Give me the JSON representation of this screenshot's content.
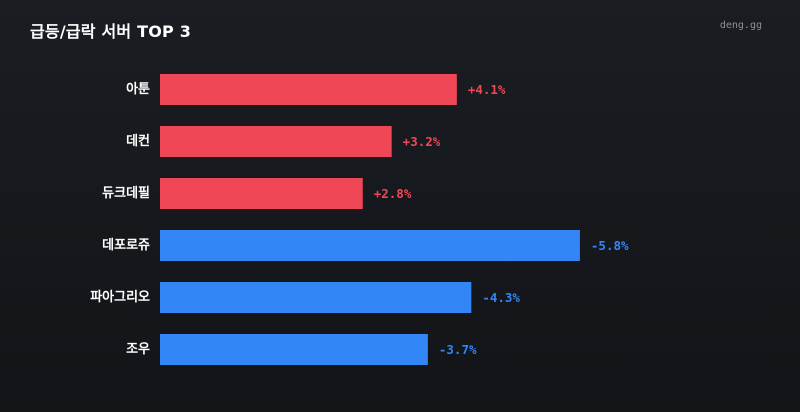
{
  "header": {
    "title": "급등/급락 서버 TOP 3",
    "brand": "deng.gg"
  },
  "colors": {
    "positive": "#f04757",
    "negative": "#3286f5"
  },
  "chart_data": {
    "type": "bar",
    "orientation": "horizontal",
    "categories": [
      "아툰",
      "데컨",
      "듀크데필",
      "데포로쥬",
      "파아그리오",
      "조우"
    ],
    "values": [
      4.1,
      3.2,
      2.8,
      -5.8,
      -4.3,
      -3.7
    ],
    "value_labels": [
      "+4.1%",
      "+3.2%",
      "+2.8%",
      "-5.8%",
      "-4.3%",
      "-3.7%"
    ],
    "bar_length": "absolute value",
    "unit": "%",
    "grid": false,
    "legend": "none"
  }
}
